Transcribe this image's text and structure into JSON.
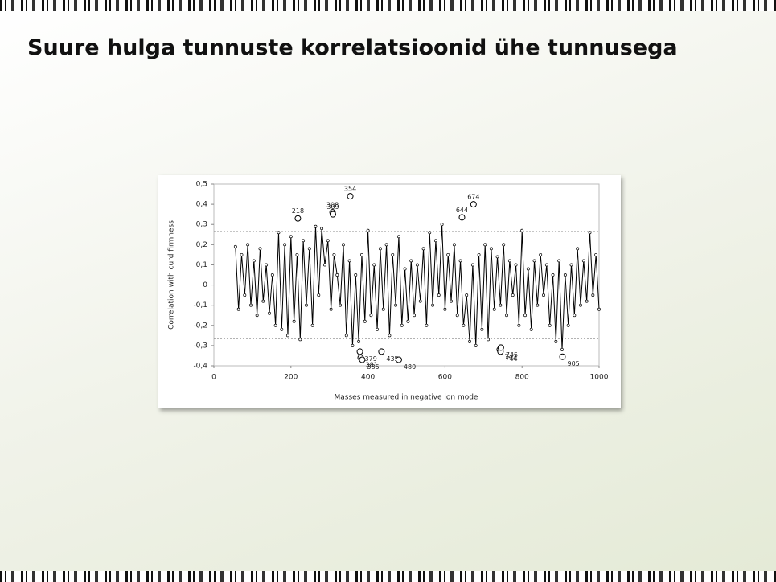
{
  "slide": {
    "title": "Suure hulga tunnuste korrelatsioonid ühe tunnusega"
  },
  "chart_data": {
    "type": "line",
    "xlabel": "Masses measured in negative ion mode",
    "ylabel": "Correlation with curd firmness",
    "xlim": [
      0,
      1000
    ],
    "ylim": [
      -0.4,
      0.5
    ],
    "xticks": [
      0,
      200,
      400,
      600,
      800,
      1000
    ],
    "yticks": [
      {
        "value": 0.5,
        "label": "0,5"
      },
      {
        "value": 0.4,
        "label": "0,4"
      },
      {
        "value": 0.3,
        "label": "0,3"
      },
      {
        "value": 0.2,
        "label": "0,2"
      },
      {
        "value": 0.1,
        "label": "0,1"
      },
      0,
      {
        "value": -0.1,
        "label": "-0,1"
      },
      {
        "value": -0.2,
        "label": "-0,2"
      },
      {
        "value": -0.3,
        "label": "-0,3"
      },
      {
        "value": -0.4,
        "label": "-0,4"
      }
    ],
    "reference_lines": [
      0.265,
      -0.265
    ],
    "series": [
      {
        "color": "#000000",
        "x": [
          56,
          64,
          72,
          80,
          88,
          96,
          104,
          112,
          120,
          128,
          136,
          144,
          152,
          160,
          168,
          176,
          184,
          192,
          200,
          208,
          216,
          224,
          232,
          240,
          248,
          256,
          264,
          272,
          280,
          288,
          296,
          304,
          312,
          320,
          328,
          336,
          344,
          352,
          360,
          368,
          376,
          384,
          392,
          400,
          408,
          416,
          424,
          432,
          440,
          448,
          456,
          464,
          472,
          480,
          488,
          496,
          504,
          512,
          520,
          528,
          536,
          544,
          552,
          560,
          568,
          576,
          584,
          592,
          600,
          608,
          616,
          624,
          632,
          640,
          648,
          656,
          664,
          672,
          680,
          688,
          696,
          704,
          712,
          720,
          728,
          736,
          744,
          752,
          760,
          768,
          776,
          784,
          792,
          800,
          808,
          816,
          824,
          832,
          840,
          848,
          856,
          864,
          872,
          880,
          888,
          896,
          904,
          912,
          920,
          928,
          936,
          944,
          952,
          960,
          968,
          976,
          984,
          992,
          1000
        ],
        "values": [
          0.19,
          -0.12,
          0.15,
          -0.05,
          0.2,
          -0.1,
          0.12,
          -0.15,
          0.18,
          -0.08,
          0.1,
          -0.14,
          0.05,
          -0.2,
          0.26,
          -0.22,
          0.2,
          -0.25,
          0.24,
          -0.18,
          0.15,
          -0.27,
          0.22,
          -0.1,
          0.18,
          -0.2,
          0.29,
          -0.05,
          0.28,
          0.1,
          0.22,
          -0.12,
          0.15,
          0.05,
          -0.1,
          0.2,
          -0.25,
          0.12,
          -0.3,
          0.05,
          -0.28,
          0.15,
          -0.18,
          0.27,
          -0.15,
          0.1,
          -0.22,
          0.18,
          -0.12,
          0.2,
          -0.25,
          0.15,
          -0.1,
          0.24,
          -0.2,
          0.08,
          -0.18,
          0.12,
          -0.15,
          0.1,
          -0.08,
          0.18,
          -0.2,
          0.26,
          -0.1,
          0.22,
          -0.05,
          0.3,
          -0.12,
          0.15,
          -0.08,
          0.2,
          -0.15,
          0.12,
          -0.2,
          -0.05,
          -0.28,
          0.1,
          -0.3,
          0.15,
          -0.22,
          0.2,
          -0.27,
          0.18,
          -0.12,
          0.14,
          -0.1,
          0.2,
          -0.15,
          0.12,
          -0.05,
          0.1,
          -0.2,
          0.27,
          -0.15,
          0.08,
          -0.22,
          0.12,
          -0.1,
          0.15,
          -0.05,
          0.1,
          -0.2,
          0.05,
          -0.28,
          0.12,
          -0.32,
          0.05,
          -0.2,
          0.1,
          -0.15,
          0.18,
          -0.1,
          0.12,
          -0.08,
          0.26,
          -0.05,
          0.15,
          -0.12
        ]
      }
    ],
    "highlights": {
      "x": [
        218,
        308,
        309,
        354,
        379,
        381,
        385,
        435,
        480,
        644,
        674,
        742,
        744,
        745,
        905
      ],
      "values": [
        0.33,
        0.36,
        0.35,
        0.44,
        -0.33,
        -0.36,
        -0.37,
        -0.33,
        -0.37,
        0.335,
        0.4,
        -0.32,
        -0.33,
        -0.31,
        -0.355
      ]
    }
  }
}
